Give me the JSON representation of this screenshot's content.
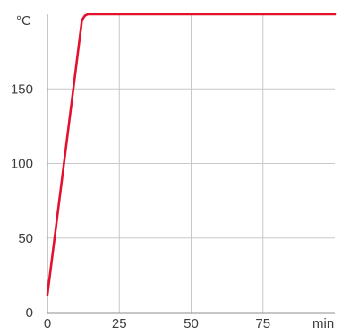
{
  "chart_data": {
    "type": "line",
    "ylabel": "°C",
    "xlabel": "min",
    "xlim": [
      0,
      100
    ],
    "ylim": [
      0,
      200
    ],
    "x_ticks": [
      0,
      25,
      50,
      75
    ],
    "x_tick_labels": [
      "0",
      "25",
      "50",
      "75"
    ],
    "y_ticks": [
      0,
      50,
      100,
      150
    ],
    "y_tick_labels": [
      "0",
      "50",
      "100",
      150
    ],
    "grid": true,
    "series": [
      {
        "color": "#e2122c",
        "x": [
          0,
          12,
          13,
          14,
          100
        ],
        "y": [
          12,
          196,
          199,
          200,
          200
        ]
      }
    ]
  }
}
